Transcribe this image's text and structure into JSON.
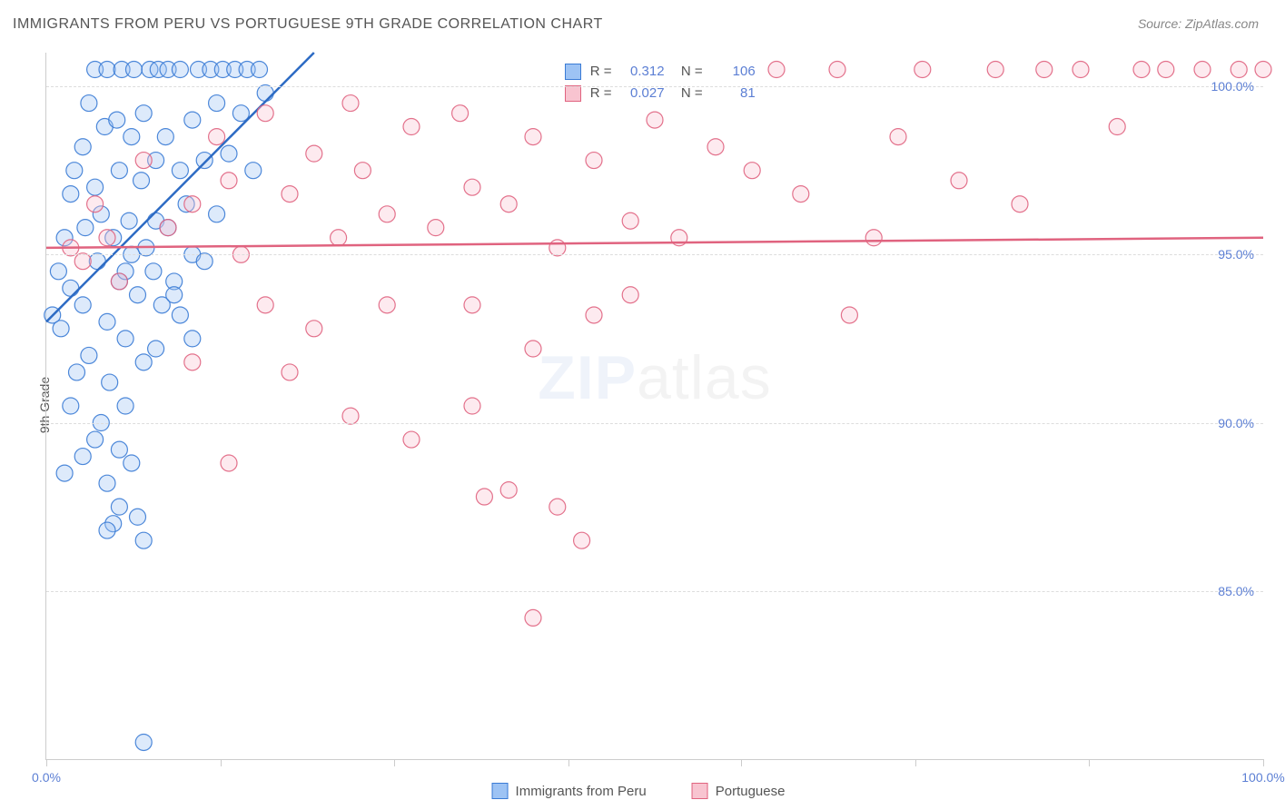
{
  "title": "IMMIGRANTS FROM PERU VS PORTUGUESE 9TH GRADE CORRELATION CHART",
  "source": "Source: ZipAtlas.com",
  "y_axis_label": "9th Grade",
  "watermark_bold": "ZIP",
  "watermark_light": "atlas",
  "chart": {
    "type": "scatter",
    "xlim": [
      0,
      100
    ],
    "ylim": [
      80,
      101
    ],
    "x_ticks": [
      0,
      14.3,
      28.6,
      42.9,
      57.1,
      71.4,
      85.7,
      100
    ],
    "x_tick_labels": {
      "0": "0.0%",
      "100": "100.0%"
    },
    "y_ticks": [
      85,
      90,
      95,
      100
    ],
    "y_tick_labels": {
      "85": "85.0%",
      "90": "90.0%",
      "95": "95.0%",
      "100": "100.0%"
    },
    "grid_color": "#dddddd",
    "background": "#ffffff",
    "marker_radius": 9,
    "marker_opacity": 0.35,
    "marker_stroke_opacity": 0.9,
    "marker_stroke_width": 1.2,
    "trend_line_width": 2.5
  },
  "series": [
    {
      "key": "peru",
      "label": "Immigrants from Peru",
      "fill": "#9dc3f4",
      "stroke": "#3a7bd5",
      "line_color": "#2d6bc4",
      "stats": {
        "R": "0.312",
        "N": "106"
      },
      "trend": {
        "x1": 0,
        "y1": 93.0,
        "x2": 22,
        "y2": 101.0
      },
      "points": [
        [
          0.5,
          93.2
        ],
        [
          1,
          94.5
        ],
        [
          1.2,
          92.8
        ],
        [
          1.5,
          95.5
        ],
        [
          2,
          96.8
        ],
        [
          2,
          94
        ],
        [
          2.3,
          97.5
        ],
        [
          2.5,
          91.5
        ],
        [
          3,
          98.2
        ],
        [
          3,
          93.5
        ],
        [
          3.2,
          95.8
        ],
        [
          3.5,
          99.5
        ],
        [
          3.5,
          92
        ],
        [
          4,
          100.5
        ],
        [
          4,
          97
        ],
        [
          4.2,
          94.8
        ],
        [
          4.5,
          96.2
        ],
        [
          4.8,
          98.8
        ],
        [
          5,
          100.5
        ],
        [
          5,
          93
        ],
        [
          5.2,
          91.2
        ],
        [
          5.5,
          95.5
        ],
        [
          5.8,
          99
        ],
        [
          6,
          97.5
        ],
        [
          6,
          94.2
        ],
        [
          6.2,
          100.5
        ],
        [
          6.5,
          92.5
        ],
        [
          6.8,
          96
        ],
        [
          7,
          98.5
        ],
        [
          7,
          95
        ],
        [
          7.2,
          100.5
        ],
        [
          7.5,
          93.8
        ],
        [
          7.8,
          97.2
        ],
        [
          8,
          99.2
        ],
        [
          8,
          91.8
        ],
        [
          8.2,
          95.2
        ],
        [
          8.5,
          100.5
        ],
        [
          8.8,
          94.5
        ],
        [
          9,
          97.8
        ],
        [
          9,
          96
        ],
        [
          9.2,
          100.5
        ],
        [
          9.5,
          93.5
        ],
        [
          9.8,
          98.5
        ],
        [
          10,
          95.8
        ],
        [
          10,
          100.5
        ],
        [
          10.5,
          94.2
        ],
        [
          11,
          97.5
        ],
        [
          11,
          100.5
        ],
        [
          11.5,
          96.5
        ],
        [
          12,
          99
        ],
        [
          12,
          95
        ],
        [
          12.5,
          100.5
        ],
        [
          13,
          97.8
        ],
        [
          13.5,
          100.5
        ],
        [
          14,
          96.2
        ],
        [
          14,
          99.5
        ],
        [
          14.5,
          100.5
        ],
        [
          15,
          98
        ],
        [
          15.5,
          100.5
        ],
        [
          16,
          99.2
        ],
        [
          16.5,
          100.5
        ],
        [
          17,
          97.5
        ],
        [
          17.5,
          100.5
        ],
        [
          18,
          99.8
        ],
        [
          4,
          89.5
        ],
        [
          5,
          88.2
        ],
        [
          6,
          87.5
        ],
        [
          6.5,
          90.5
        ],
        [
          7,
          88.8
        ],
        [
          8,
          86.5
        ],
        [
          5.5,
          87
        ],
        [
          8,
          80.5
        ],
        [
          2,
          90.5
        ],
        [
          3,
          89
        ],
        [
          1.5,
          88.5
        ],
        [
          4.5,
          90
        ],
        [
          6,
          89.2
        ],
        [
          7.5,
          87.2
        ],
        [
          5,
          86.8
        ],
        [
          6.5,
          94.5
        ],
        [
          11,
          93.2
        ],
        [
          13,
          94.8
        ],
        [
          9,
          92.2
        ],
        [
          10.5,
          93.8
        ],
        [
          12,
          92.5
        ]
      ]
    },
    {
      "key": "portuguese",
      "label": "Portuguese",
      "fill": "#f8c4d0",
      "stroke": "#e0637f",
      "line_color": "#e0637f",
      "stats": {
        "R": "0.027",
        "N": "81"
      },
      "trend": {
        "x1": 0,
        "y1": 95.2,
        "x2": 100,
        "y2": 95.5
      },
      "points": [
        [
          2,
          95.2
        ],
        [
          3,
          94.8
        ],
        [
          4,
          96.5
        ],
        [
          5,
          95.5
        ],
        [
          6,
          94.2
        ],
        [
          8,
          97.8
        ],
        [
          10,
          95.8
        ],
        [
          12,
          96.5
        ],
        [
          14,
          98.5
        ],
        [
          15,
          97.2
        ],
        [
          16,
          95
        ],
        [
          18,
          99.2
        ],
        [
          20,
          96.8
        ],
        [
          22,
          98
        ],
        [
          24,
          95.5
        ],
        [
          25,
          99.5
        ],
        [
          26,
          97.5
        ],
        [
          28,
          96.2
        ],
        [
          30,
          98.8
        ],
        [
          32,
          95.8
        ],
        [
          34,
          99.2
        ],
        [
          35,
          97
        ],
        [
          38,
          96.5
        ],
        [
          40,
          98.5
        ],
        [
          42,
          95.2
        ],
        [
          45,
          97.8
        ],
        [
          48,
          96
        ],
        [
          50,
          99
        ],
        [
          52,
          95.5
        ],
        [
          55,
          98.2
        ],
        [
          58,
          97.5
        ],
        [
          60,
          100.5
        ],
        [
          62,
          96.8
        ],
        [
          65,
          100.5
        ],
        [
          68,
          95.5
        ],
        [
          70,
          98.5
        ],
        [
          72,
          100.5
        ],
        [
          75,
          97.2
        ],
        [
          78,
          100.5
        ],
        [
          80,
          96.5
        ],
        [
          82,
          100.5
        ],
        [
          85,
          100.5
        ],
        [
          88,
          98.8
        ],
        [
          90,
          100.5
        ],
        [
          92,
          100.5
        ],
        [
          95,
          100.5
        ],
        [
          98,
          100.5
        ],
        [
          100,
          100.5
        ],
        [
          15,
          88.8
        ],
        [
          20,
          91.5
        ],
        [
          25,
          90.2
        ],
        [
          12,
          91.8
        ],
        [
          30,
          89.5
        ],
        [
          35,
          93.5
        ],
        [
          40,
          92.2
        ],
        [
          42,
          87.5
        ],
        [
          38,
          88
        ],
        [
          44,
          86.5
        ],
        [
          36,
          87.8
        ],
        [
          45,
          93.2
        ],
        [
          48,
          93.8
        ],
        [
          66,
          93.2
        ],
        [
          28,
          93.5
        ],
        [
          40,
          84.2
        ],
        [
          35,
          90.5
        ],
        [
          22,
          92.8
        ],
        [
          18,
          93.5
        ]
      ]
    }
  ],
  "stats_legend": {
    "R_label": "R =",
    "N_label": "N ="
  }
}
